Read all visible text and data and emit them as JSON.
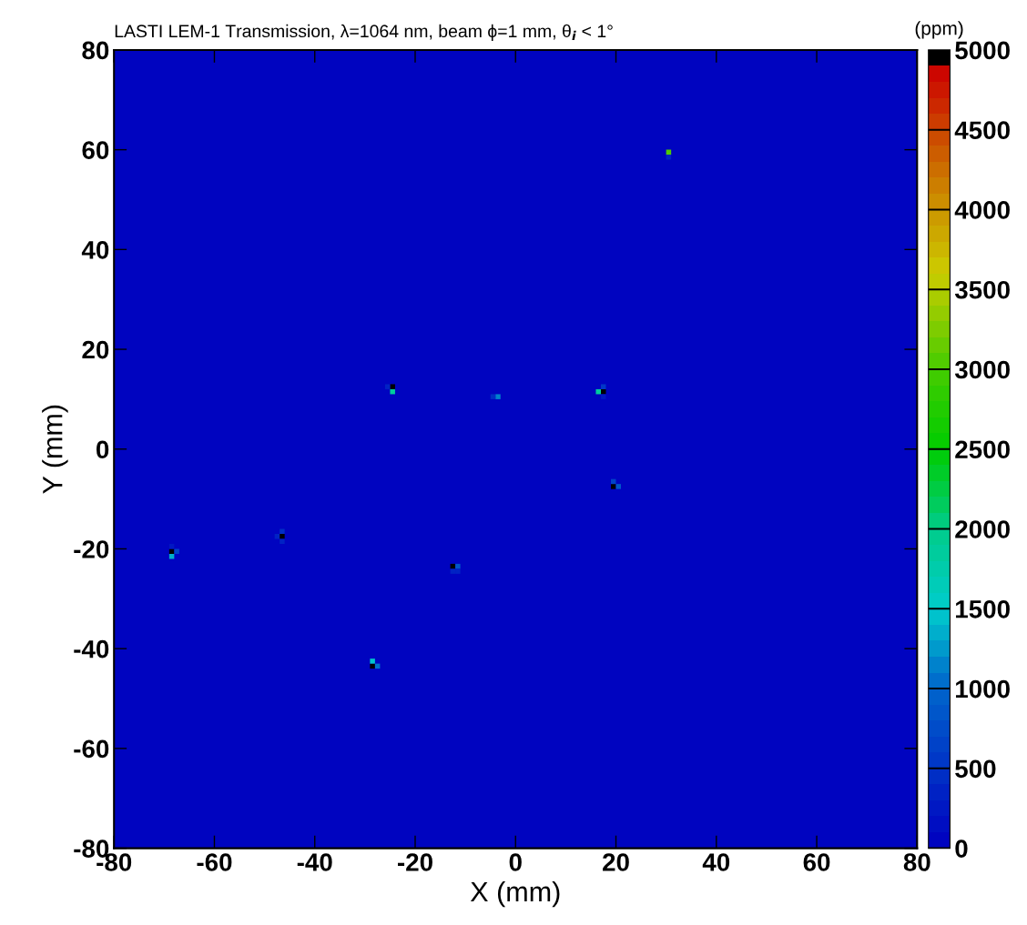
{
  "chart_data": {
    "type": "scatter",
    "title": "LASTI LEM-1 Transmission, λ=1064 nm, beam ϕ=1 mm, θ$_{i}$ < 1°",
    "xlabel": "X (mm)",
    "ylabel": "Y (mm)",
    "clabel": "(ppm)",
    "x": [
      -24.5,
      -24.5,
      -25.5,
      -3.5,
      -4.5,
      17.5,
      16.5,
      17.5,
      17.5,
      -68.5,
      -68.5,
      -67.5,
      -68.5,
      -46.5,
      -46.5,
      -46.5,
      -47.5,
      -12.5,
      -11.5,
      -12.5,
      -11.5,
      -28.5,
      -28.5,
      -27.5,
      30.5,
      30.5,
      19.5,
      20.5,
      19.5
    ],
    "values": [
      12.5,
      11.5,
      12.5,
      10.5,
      10.5,
      11.5,
      11.5,
      12.5,
      10.5,
      -20.5,
      -21.5,
      -20.5,
      -19.5,
      -17.5,
      -16.5,
      -18.5,
      -17.5,
      -23.5,
      -23.5,
      -24.5,
      -24.5,
      -43.5,
      -42.5,
      -43.5,
      59.5,
      58.5,
      -7.5,
      -7.5,
      -6.5
    ],
    "cvalues": [
      5000,
      1800,
      300,
      1100,
      400,
      5000,
      1800,
      500,
      200,
      5000,
      1300,
      600,
      200,
      5000,
      400,
      300,
      300,
      5000,
      800,
      300,
      300,
      5000,
      1400,
      1000,
      3000,
      300,
      5000,
      800,
      600
    ],
    "marker": "square",
    "xlim": [
      -80,
      80
    ],
    "ylim": [
      -80,
      80
    ],
    "xticks": [
      -80,
      -60,
      -40,
      -20,
      0,
      20,
      40,
      60,
      80
    ],
    "yticks": [
      -80,
      -60,
      -40,
      -20,
      0,
      20,
      40,
      60,
      80
    ],
    "clim": [
      0,
      5000
    ],
    "cticks": [
      0,
      500,
      1000,
      1500,
      2000,
      2500,
      3000,
      3500,
      4000,
      4500,
      5000
    ],
    "grid": false
  }
}
